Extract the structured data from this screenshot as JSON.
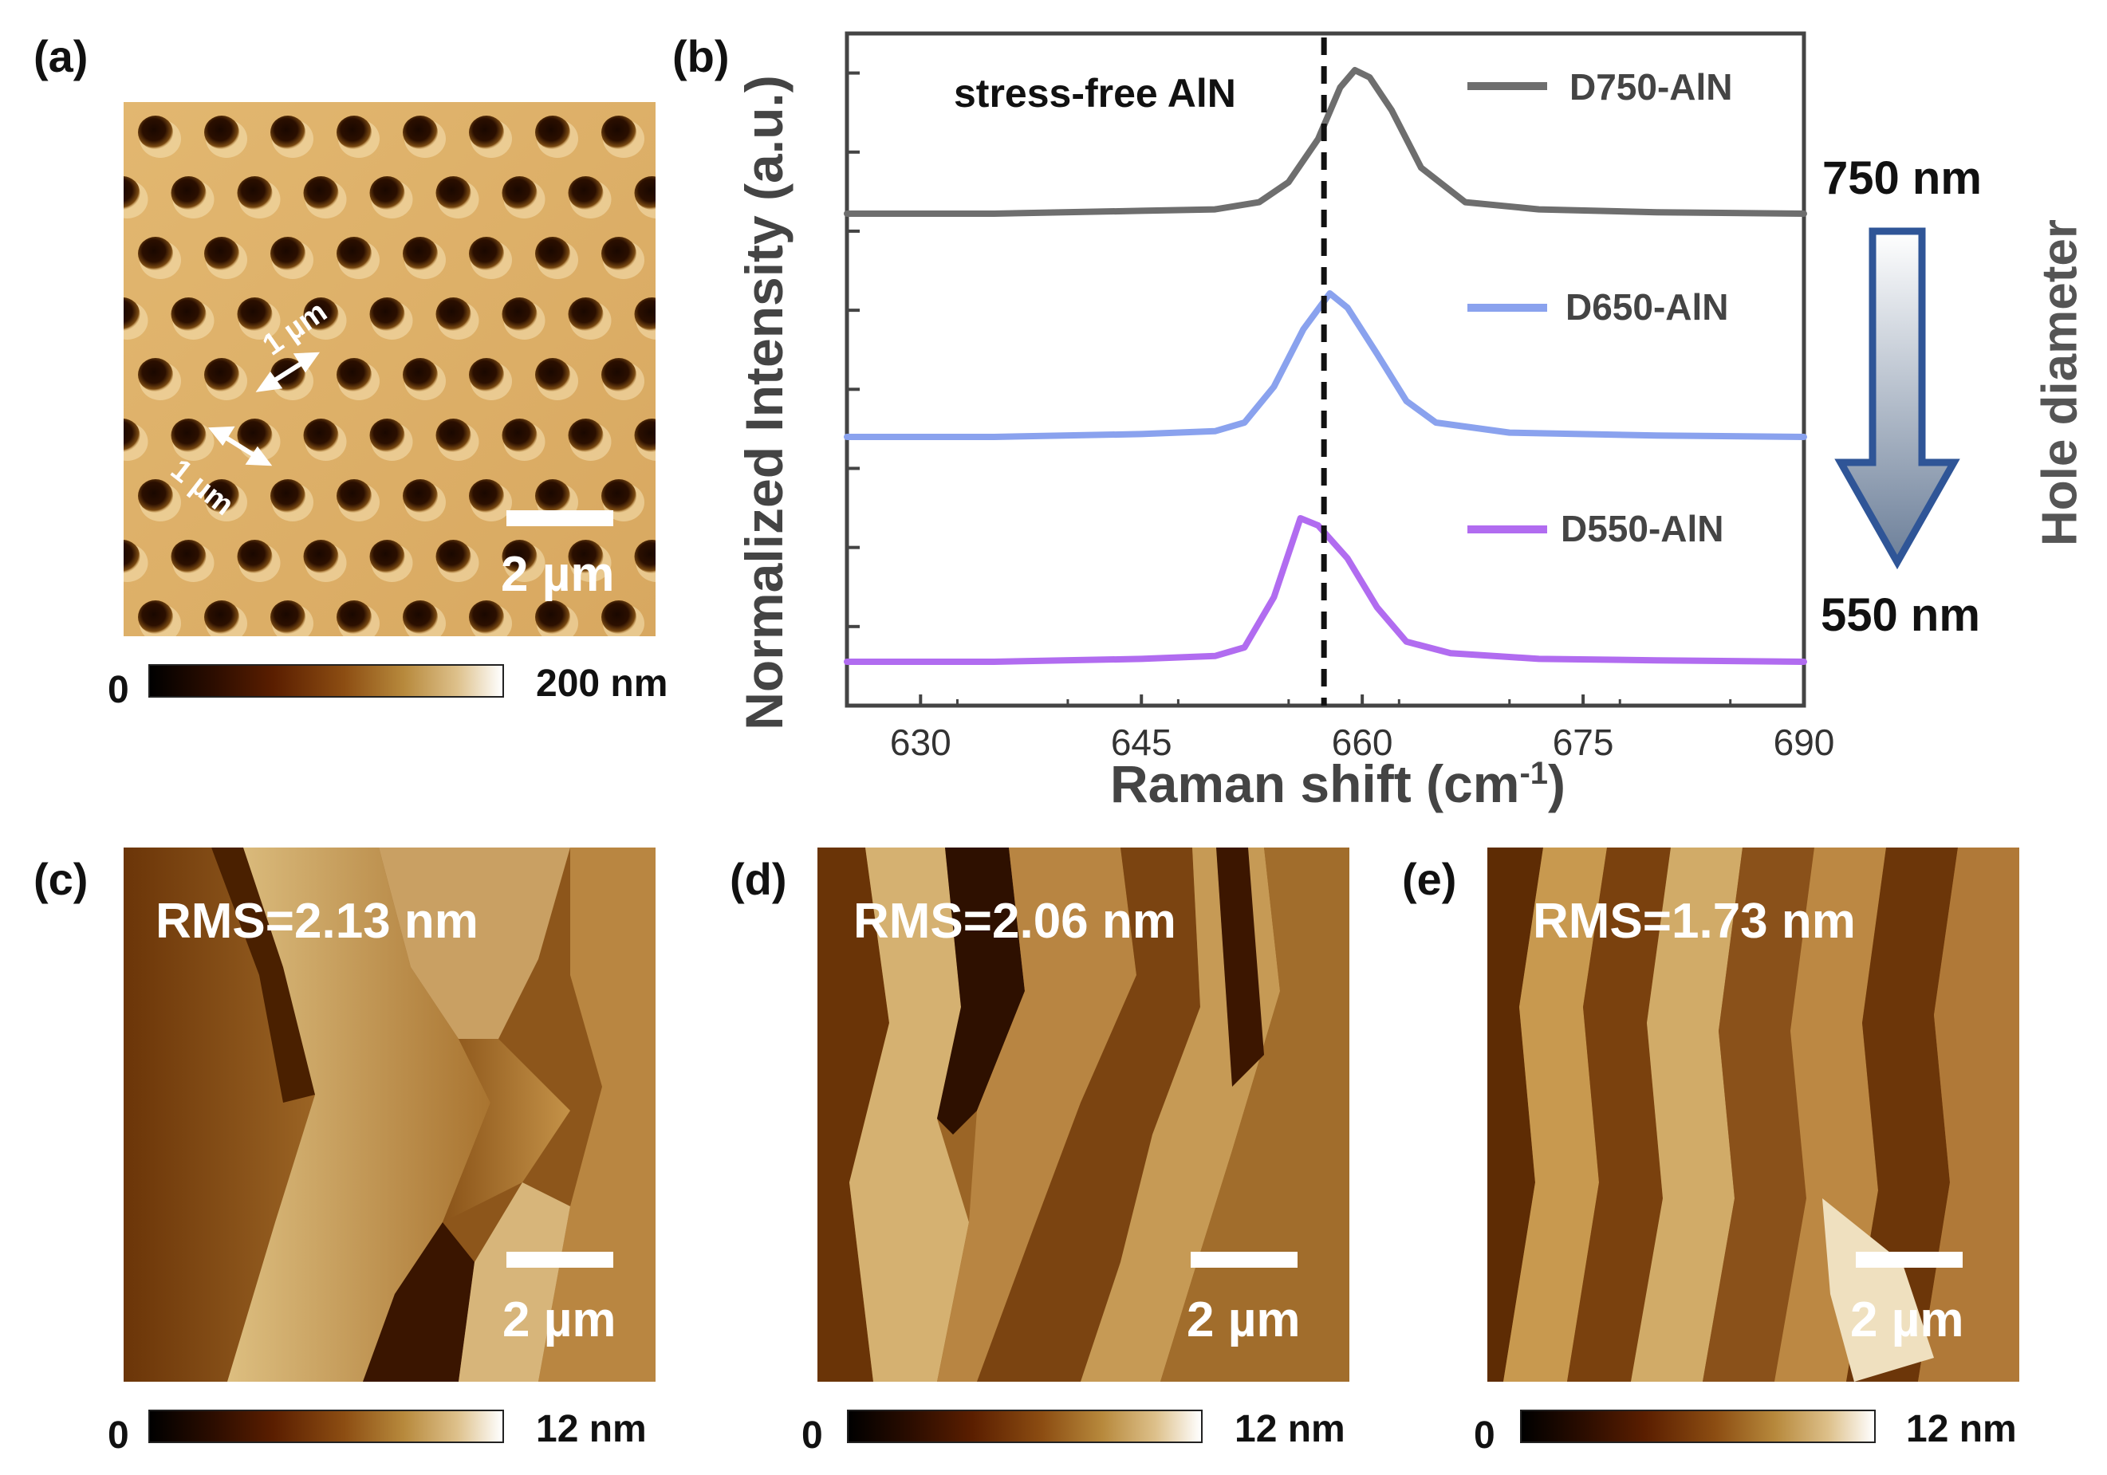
{
  "panels": {
    "a": {
      "label": "(a)",
      "spacing_label_1": "1 µm",
      "spacing_label_2": "1 µm",
      "scale_bar": "2 µm",
      "colorbar_min": "0",
      "colorbar_max": "200 nm"
    },
    "b": {
      "label": "(b)"
    },
    "c": {
      "label": "(c)",
      "rms": "RMS=2.13  nm",
      "scale_bar": "2 µm",
      "colorbar_min": "0",
      "colorbar_max": "12 nm"
    },
    "d": {
      "label": "(d)",
      "rms": "RMS=2.06  nm",
      "scale_bar": "2 µm",
      "colorbar_min": "0",
      "colorbar_max": "12 nm"
    },
    "e": {
      "label": "(e)",
      "rms": "RMS=1.73  nm",
      "scale_bar": "2 µm",
      "colorbar_min": "0",
      "colorbar_max": "12 nm"
    }
  },
  "colors": {
    "D750": "#6e6e6e",
    "D650": "#8aa2ee",
    "D550": "#b16cf0",
    "arrow_border": "#2f5597"
  },
  "chart_data": {
    "type": "line",
    "xlabel": "Raman shift (cm",
    "xlabel_sup": "-1",
    "xlabel_end": ")",
    "ylabel": "Normalized Intensity (a.u.)",
    "xlim": [
      625,
      690
    ],
    "xticks": [
      630,
      645,
      660,
      675,
      690
    ],
    "annotation": "stress-free AlN",
    "reference_line_x": 657.4,
    "legend_position": "right, beside each curve",
    "series": [
      {
        "name": "D750-AlN",
        "peak_x": 659.5,
        "color": "#6e6e6e",
        "x": [
          625,
          635,
          645,
          650,
          653,
          655,
          657,
          658.5,
          659.5,
          660.5,
          662,
          664,
          667,
          672,
          680,
          690
        ],
        "y": [
          0.0,
          0.0,
          0.02,
          0.03,
          0.08,
          0.22,
          0.52,
          0.88,
          1.0,
          0.95,
          0.72,
          0.32,
          0.08,
          0.03,
          0.01,
          0.0
        ]
      },
      {
        "name": "D650-AlN",
        "peak_x": 657.8,
        "color": "#8aa2ee",
        "x": [
          625,
          635,
          645,
          650,
          652,
          654,
          656,
          657.8,
          659,
          661,
          663,
          665,
          670,
          680,
          690
        ],
        "y": [
          0.0,
          0.0,
          0.02,
          0.04,
          0.1,
          0.35,
          0.75,
          1.0,
          0.9,
          0.58,
          0.25,
          0.1,
          0.03,
          0.01,
          0.0
        ]
      },
      {
        "name": "D550-AlN",
        "peak_x": 655.8,
        "color": "#b16cf0",
        "x": [
          625,
          635,
          645,
          650,
          652,
          654,
          655.8,
          657,
          659,
          661,
          663,
          666,
          672,
          680,
          690
        ],
        "y": [
          0.0,
          0.0,
          0.02,
          0.04,
          0.1,
          0.45,
          1.0,
          0.95,
          0.72,
          0.38,
          0.14,
          0.06,
          0.02,
          0.01,
          0.0
        ]
      }
    ]
  },
  "side_annotation": {
    "top": "750 nm",
    "bottom": "550 nm",
    "title": "Hole diameter"
  }
}
